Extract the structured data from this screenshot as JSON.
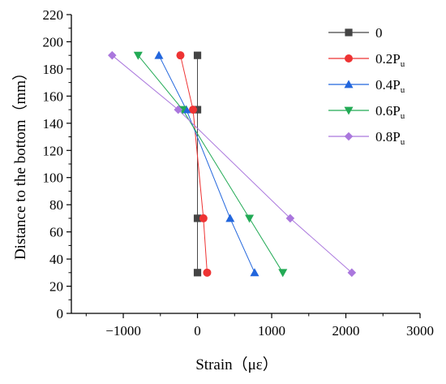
{
  "chart_data": {
    "type": "line",
    "xlabel": "Strain（με）",
    "ylabel": "Distance to the bottom（mm）",
    "xlim": [
      -1700,
      3000
    ],
    "ylim": [
      0,
      220
    ],
    "xticks": [
      -1000,
      0,
      1000,
      2000,
      3000
    ],
    "xtick_labels": [
      "−1000",
      "0",
      "1000",
      "2000",
      "3000"
    ],
    "yticks": [
      0,
      20,
      40,
      60,
      80,
      100,
      120,
      140,
      160,
      180,
      200,
      220
    ],
    "grid": false,
    "legend_position": "top-right",
    "series": [
      {
        "name": "0",
        "name_main": "0",
        "name_sub": "",
        "color": "#444444",
        "marker": "square",
        "points": [
          [
            0,
            190
          ],
          [
            0,
            150
          ],
          [
            0,
            70
          ],
          [
            0,
            30
          ]
        ]
      },
      {
        "name": "0.2Pu",
        "name_main": "0.2P",
        "name_sub": "u",
        "color": "#ee3333",
        "marker": "circle",
        "points": [
          [
            -230,
            190
          ],
          [
            -60,
            150
          ],
          [
            80,
            70
          ],
          [
            130,
            30
          ]
        ]
      },
      {
        "name": "0.4Pu",
        "name_main": "0.4P",
        "name_sub": "u",
        "color": "#2266dd",
        "marker": "triangle-up",
        "points": [
          [
            -520,
            190
          ],
          [
            -150,
            150
          ],
          [
            440,
            70
          ],
          [
            770,
            30
          ]
        ]
      },
      {
        "name": "0.6Pu",
        "name_main": "0.6P",
        "name_sub": "u",
        "color": "#22aa55",
        "marker": "triangle-down",
        "points": [
          [
            -800,
            190
          ],
          [
            -200,
            150
          ],
          [
            700,
            70
          ],
          [
            1150,
            30
          ]
        ]
      },
      {
        "name": "0.8Pu",
        "name_main": "0.8P",
        "name_sub": "u",
        "color": "#aa77dd",
        "marker": "diamond",
        "points": [
          [
            -1150,
            190
          ],
          [
            -260,
            150
          ],
          [
            1250,
            70
          ],
          [
            2080,
            30
          ]
        ]
      }
    ]
  }
}
